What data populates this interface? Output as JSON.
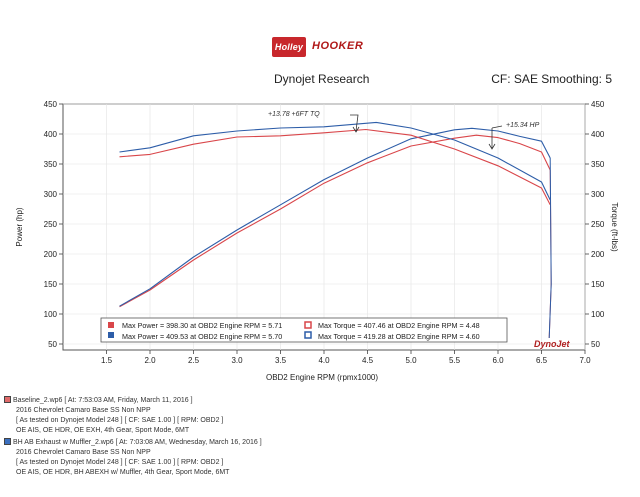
{
  "header": {
    "logo_holley": "Holley",
    "logo_hooker": "HOOKER",
    "company": "Dynojet Research",
    "settings": "CF: SAE Smoothing: 5"
  },
  "chart_data": {
    "type": "line",
    "xlabel": "OBD2 Engine RPM (rpmx1000)",
    "ylabel_left": "Power (hp)",
    "ylabel_right": "Torque (ft-lbs)",
    "xlim": [
      1.0,
      7.0
    ],
    "ylim": [
      40,
      450
    ],
    "xticks": [
      "1.5",
      "2.0",
      "2.5",
      "3.0",
      "3.5",
      "4.0",
      "4.5",
      "5.0",
      "5.5",
      "6.0",
      "6.5",
      "7.0"
    ],
    "yticks_left": [
      "50",
      "100",
      "150",
      "200",
      "250",
      "300",
      "350",
      "400",
      "450"
    ],
    "yticks_right": [
      "50",
      "100",
      "150",
      "200",
      "250",
      "300",
      "350",
      "400",
      "450"
    ],
    "annotations": [
      "+13.78 +6FT TQ",
      "+15.34 HP"
    ],
    "series": [
      {
        "kind": "power",
        "run": 1,
        "color": "#d9464a",
        "x": [
          1.65,
          2.0,
          2.5,
          3.0,
          3.5,
          4.0,
          4.5,
          5.0,
          5.5,
          5.75,
          6.0,
          6.25,
          6.5,
          6.6
        ],
        "y": [
          112,
          140,
          190,
          235,
          275,
          318,
          352,
          380,
          393,
          398,
          394,
          384,
          370,
          340
        ]
      },
      {
        "kind": "power",
        "run": 2,
        "color": "#2d5da8",
        "x": [
          1.65,
          2.0,
          2.5,
          3.0,
          3.5,
          4.0,
          4.5,
          5.0,
          5.5,
          5.7,
          6.0,
          6.25,
          6.5,
          6.6
        ],
        "y": [
          113,
          142,
          195,
          240,
          282,
          324,
          360,
          392,
          407,
          409.5,
          405,
          396,
          388,
          360
        ]
      },
      {
        "kind": "torque",
        "run": 1,
        "color": "#d9464a",
        "x": [
          1.65,
          2.0,
          2.5,
          3.0,
          3.5,
          4.0,
          4.48,
          5.0,
          5.5,
          6.0,
          6.5,
          6.6
        ],
        "y": [
          362,
          366,
          383,
          395,
          397,
          402,
          407.5,
          398,
          375,
          347,
          310,
          282
        ]
      },
      {
        "kind": "torque",
        "run": 2,
        "color": "#2d5da8",
        "x": [
          1.65,
          2.0,
          2.5,
          3.0,
          3.5,
          4.0,
          4.6,
          5.0,
          5.5,
          6.0,
          6.5,
          6.6
        ],
        "y": [
          370,
          377,
          397,
          405,
          410,
          412,
          419.3,
          410,
          390,
          360,
          320,
          290
        ]
      }
    ],
    "legend": {
      "placement": "bottom",
      "rows": [
        {
          "color": "#d9464a",
          "power": "Max Power = 398.30 at OBD2 Engine RPM = 5.71",
          "torque": "Max Torque = 407.46 at OBD2 Engine RPM = 4.48"
        },
        {
          "color": "#2d5da8",
          "power": "Max Power = 409.53 at OBD2 Engine RPM = 5.70",
          "torque": "Max Torque = 419.28 at OBD2 Engine RPM = 4.60"
        }
      ]
    },
    "watermark": "DynoJet"
  },
  "runs": [
    {
      "color": "#e06a6a",
      "file": "Baseline_2.wp6 [ At: 7:53:03 AM, Friday, March 11, 2016 ]",
      "vehicle": "2016 Chevrolet Camaro Base SS Non NPP",
      "tested": "[ As tested on Dynojet Model 248 ] [ CF: SAE 1.00 ] [ RPM: OBD2 ]",
      "config": "OE AIS, OE HDR, OE EXH, 4th Gear, Sport Mode, 6MT"
    },
    {
      "color": "#3a6fbf",
      "file": "BH AB Exhaust w Muffler_2.wp6 [ At: 7:03:08 AM, Wednesday, March 16, 2016 ]",
      "vehicle": "2016 Chevrolet Camaro Base SS Non NPP",
      "tested": "[ As tested on Dynojet Model 248 ] [ CF: SAE 1.00 ] [ RPM: OBD2 ]",
      "config": "OE AIS, OE HDR, BH ABEXH w/ Muffler, 4th Gear, Sport Mode, 6MT"
    }
  ]
}
